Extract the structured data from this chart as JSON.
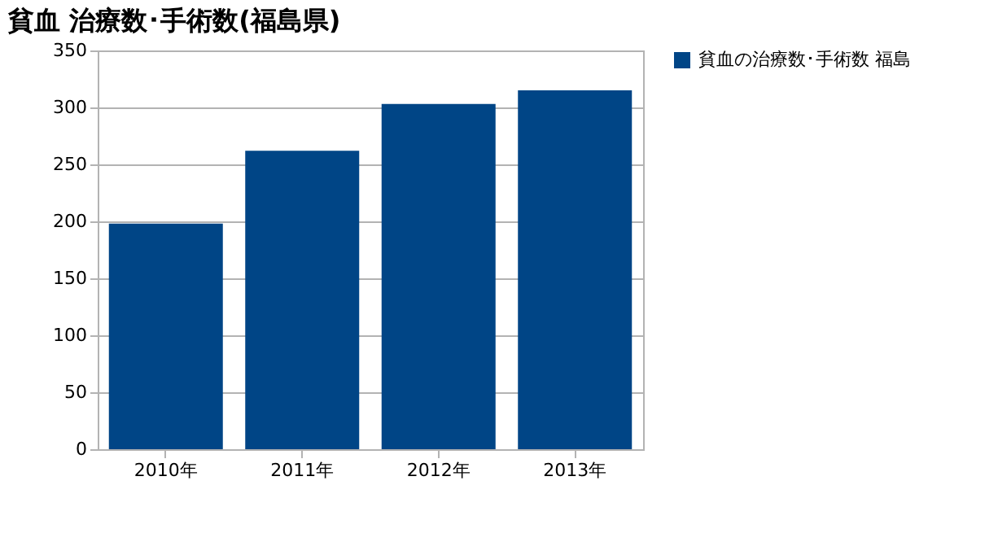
{
  "chart_data": {
    "type": "bar",
    "title": "貧血 治療数･手術数(福島県)",
    "categories": [
      "2010年",
      "2011年",
      "2012年",
      "2013年"
    ],
    "series": [
      {
        "name": "貧血の治療数･手術数 福島",
        "color": "#004586",
        "values": [
          198,
          262,
          303,
          315
        ]
      }
    ],
    "ylim": [
      0,
      350
    ],
    "yticks": [
      0,
      50,
      100,
      150,
      200,
      250,
      300,
      350
    ],
    "grid": "y",
    "legend": "right"
  }
}
